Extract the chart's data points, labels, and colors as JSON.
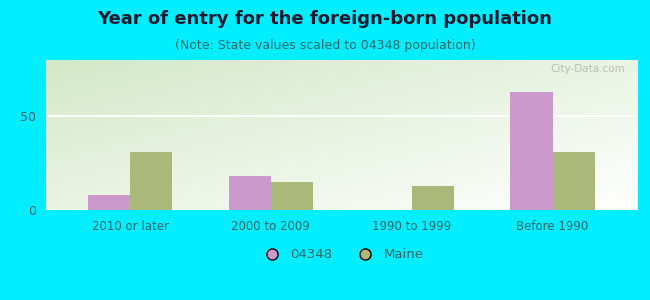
{
  "categories": [
    "2010 or later",
    "2000 to 2009",
    "1990 to 1999",
    "Before 1990"
  ],
  "series": [
    {
      "label": "04348",
      "values": [
        8,
        18,
        0,
        63
      ],
      "color": "#cc99cc"
    },
    {
      "label": "Maine",
      "values": [
        31,
        15,
        13,
        31
      ],
      "color": "#aab87a"
    }
  ],
  "title": "Year of entry for the foreign-born population",
  "subtitle": "(Note: State values scaled to 04348 population)",
  "ylim": [
    0,
    80
  ],
  "yticks": [
    0,
    50
  ],
  "background_outer": "#00eeff",
  "bar_width": 0.3,
  "title_fontsize": 13,
  "subtitle_fontsize": 9,
  "title_color": "#1a1a2e",
  "subtitle_color": "#336666",
  "tick_color": "#336666",
  "watermark": "City-Data.com"
}
